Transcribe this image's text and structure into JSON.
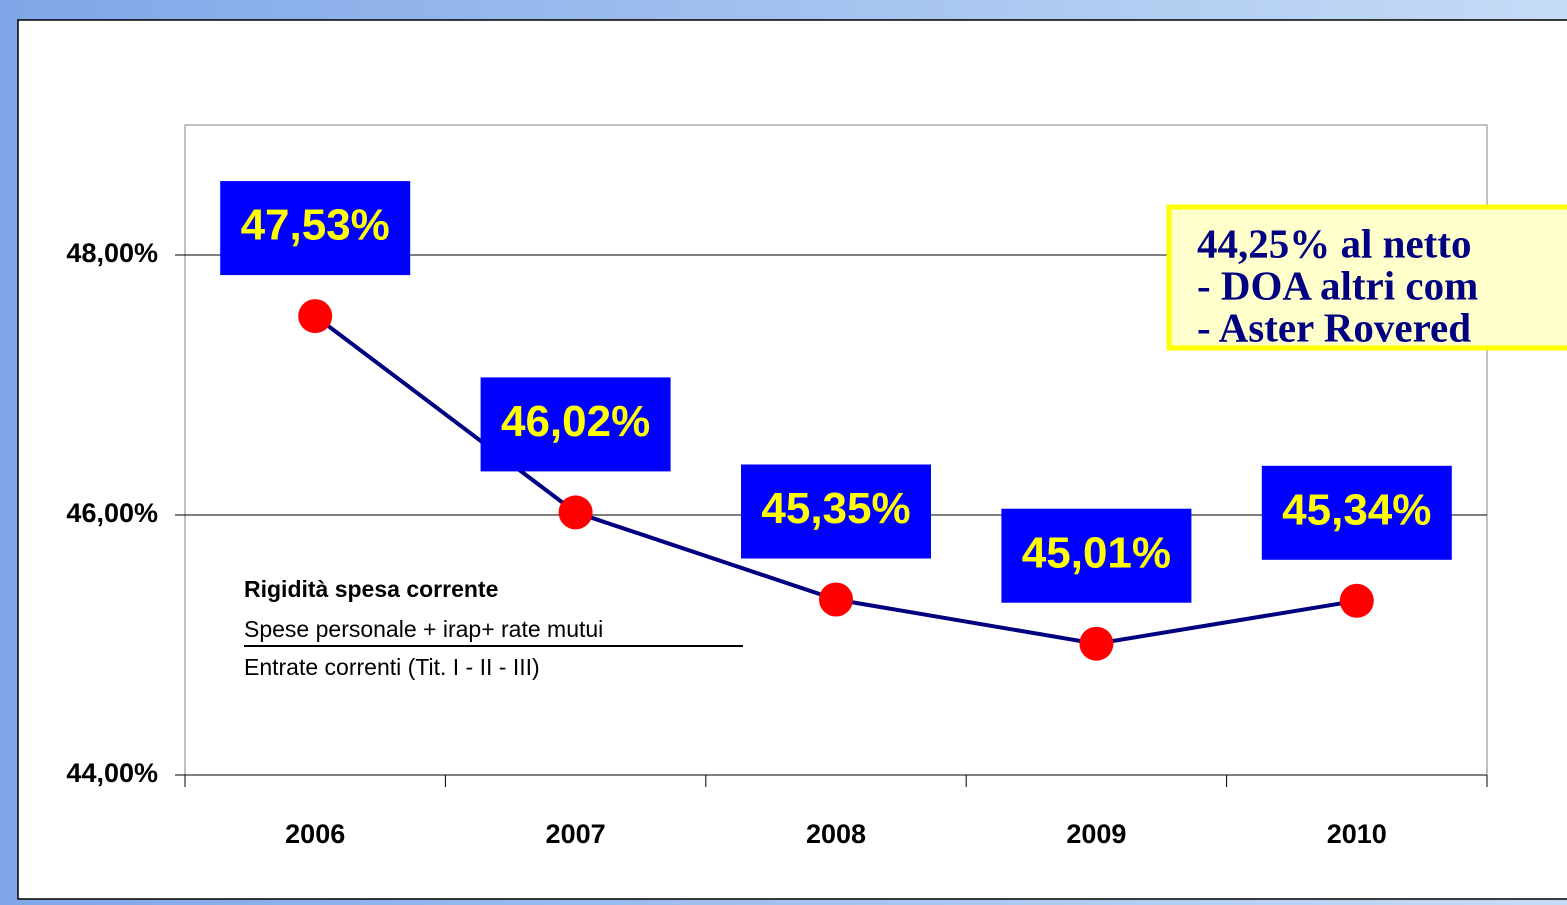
{
  "chart_data": {
    "type": "line",
    "categories": [
      "2006",
      "2007",
      "2008",
      "2009",
      "2010"
    ],
    "values": [
      47.53,
      46.02,
      45.35,
      45.01,
      45.34
    ],
    "value_labels": [
      "47,53%",
      "46,02%",
      "45,35%",
      "45,01%",
      "45,34%"
    ],
    "color": "#000080",
    "marker_color": "#ff0000",
    "ylim": [
      44,
      49
    ],
    "yticks": [
      {
        "value": 44,
        "label": "44,00%"
      },
      {
        "value": 46,
        "label": "46,00%"
      },
      {
        "value": 48,
        "label": "48,00%"
      }
    ],
    "grid": true,
    "note": [
      "Rigidità spesa corrente",
      "Spese personale + irap+ rate mutui",
      "Entrate correnti (Tit. I - II - III)"
    ],
    "annotation": [
      "44,25% al netto",
      "- DOA altri com",
      "- Aster Rovered"
    ]
  }
}
